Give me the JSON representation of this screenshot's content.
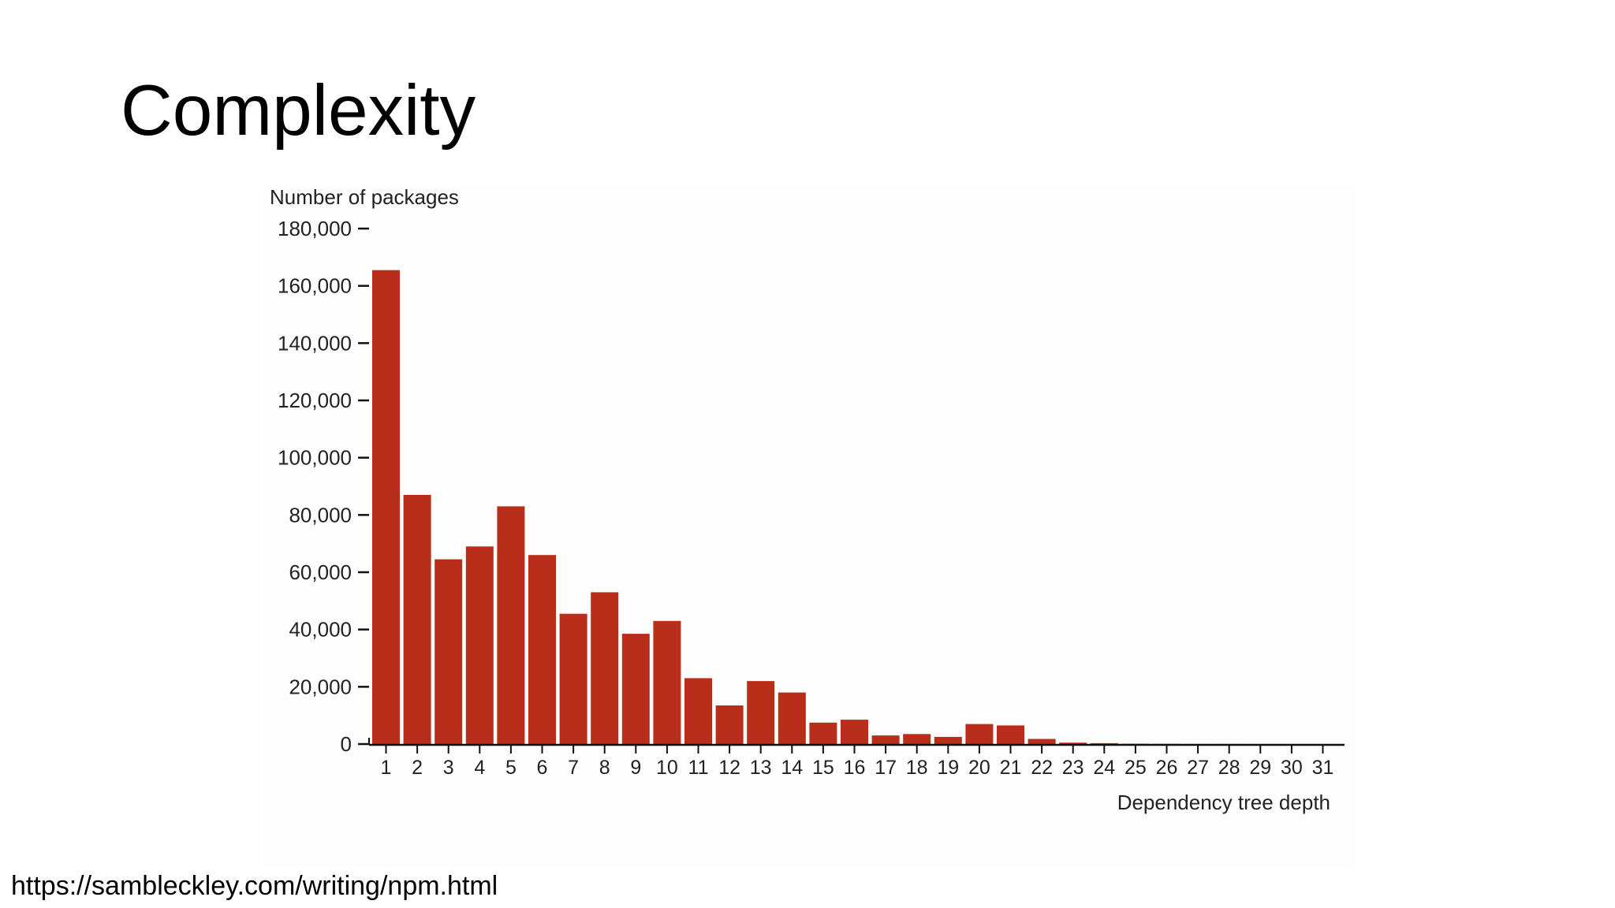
{
  "slide": {
    "title": "Complexity",
    "source_link": "https://sambleckley.com/writing/npm.html"
  },
  "colors": {
    "bar": "#b82e1a",
    "axis": "#111111",
    "text": "#222222",
    "background": "#ffffff"
  },
  "chart_data": {
    "type": "bar",
    "title": "",
    "xlabel": "Dependency tree depth",
    "ylabel": "Number of packages",
    "ylim": [
      0,
      180000
    ],
    "yticks": [
      0,
      20000,
      40000,
      60000,
      80000,
      100000,
      120000,
      140000,
      160000,
      180000
    ],
    "ytick_labels": [
      "0",
      "20,000",
      "40,000",
      "60,000",
      "80,000",
      "100,000",
      "120,000",
      "140,000",
      "160,000",
      "180,000"
    ],
    "grid": false,
    "legend": "none",
    "categories": [
      "1",
      "2",
      "3",
      "4",
      "5",
      "6",
      "7",
      "8",
      "9",
      "10",
      "11",
      "12",
      "13",
      "14",
      "15",
      "16",
      "17",
      "18",
      "19",
      "20",
      "21",
      "22",
      "23",
      "24",
      "25",
      "26",
      "27",
      "28",
      "29",
      "30",
      "31"
    ],
    "values": [
      165500,
      87000,
      64500,
      69000,
      83000,
      66000,
      45500,
      53000,
      38500,
      43000,
      23000,
      13500,
      22000,
      18000,
      7500,
      8500,
      3000,
      3500,
      2500,
      7000,
      6500,
      1800,
      500,
      300,
      100,
      50,
      30,
      20,
      10,
      5,
      5
    ]
  }
}
